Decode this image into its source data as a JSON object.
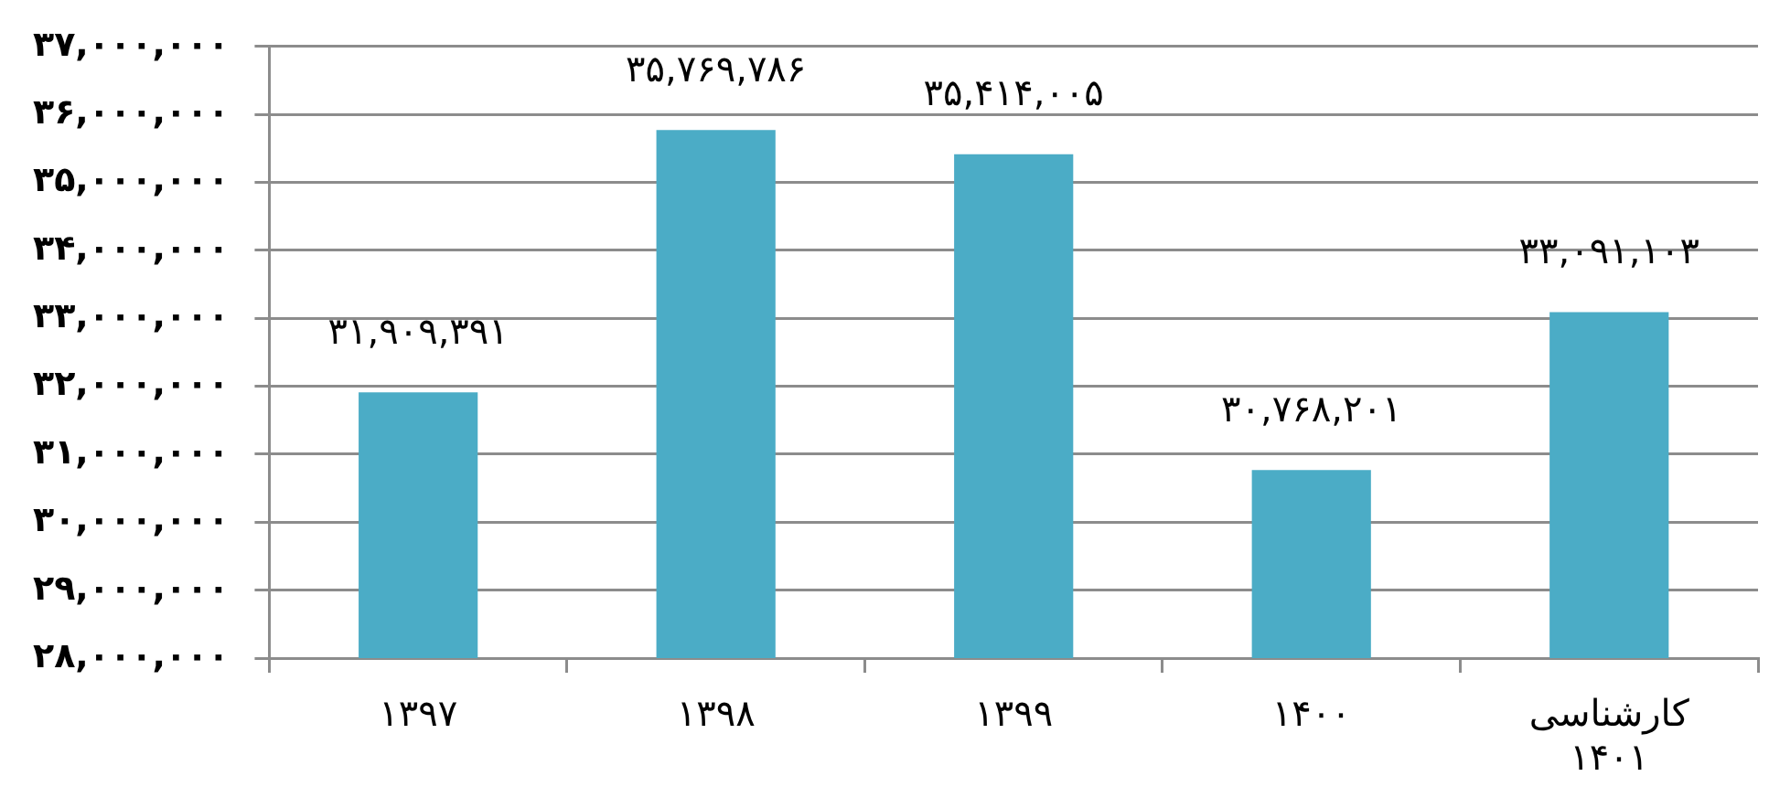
{
  "chart_data": {
    "type": "bar",
    "categories": [
      "۱۳۹۷",
      "۱۳۹۸",
      "۱۳۹۹",
      "۱۴۰۰",
      "کارشناسی ۱۴۰۱"
    ],
    "values": [
      31909391,
      35769786,
      35414005,
      30768201,
      33091103
    ],
    "value_labels": [
      "۳۱,۹۰۹,۳۹۱",
      "۳۵,۷۶۹,۷۸۶",
      "۳۵,۴۱۴,۰۰۵",
      "۳۰,۷۶۸,۲۰۱",
      "۳۳,۰۹۱,۱۰۳"
    ],
    "color": "#4bacc6",
    "ylim": [
      28000000,
      37000000
    ],
    "yticks": [
      {
        "value": 28000000,
        "label": "۲۸,۰۰۰,۰۰۰"
      },
      {
        "value": 29000000,
        "label": "۲۹,۰۰۰,۰۰۰"
      },
      {
        "value": 30000000,
        "label": "۳۰,۰۰۰,۰۰۰"
      },
      {
        "value": 31000000,
        "label": "۳۱,۰۰۰,۰۰۰"
      },
      {
        "value": 32000000,
        "label": "۳۲,۰۰۰,۰۰۰"
      },
      {
        "value": 33000000,
        "label": "۳۳,۰۰۰,۰۰۰"
      },
      {
        "value": 34000000,
        "label": "۳۴,۰۰۰,۰۰۰"
      },
      {
        "value": 35000000,
        "label": "۳۵,۰۰۰,۰۰۰"
      },
      {
        "value": 36000000,
        "label": "۳۶,۰۰۰,۰۰۰"
      },
      {
        "value": 37000000,
        "label": "۳۷,۰۰۰,۰۰۰"
      }
    ],
    "grid": "y"
  }
}
